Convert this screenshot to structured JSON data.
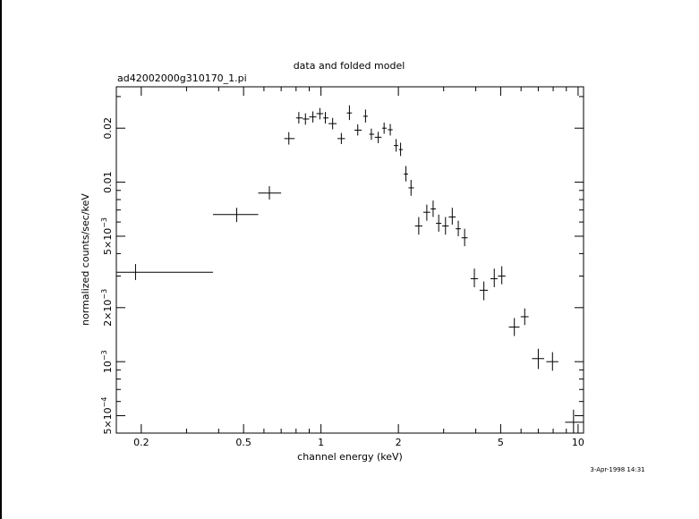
{
  "chart_data": {
    "type": "scatter",
    "title": "data and folded model",
    "subtitle": "ad42002000g310170_1.pi",
    "xlabel": "channel energy (keV)",
    "ylabel": "normalized counts/sec/keV",
    "timestamp": "3-Apr-1998 14:31",
    "x_scale": "log",
    "y_scale": "log",
    "xlim": [
      0.16,
      10.5
    ],
    "ylim": [
      0.0004,
      0.034
    ],
    "x_ticks": [
      {
        "value": 0.2,
        "label": "0.2"
      },
      {
        "value": 0.5,
        "label": "0.5"
      },
      {
        "value": 1,
        "label": "1"
      },
      {
        "value": 2,
        "label": "2"
      },
      {
        "value": 5,
        "label": "5"
      },
      {
        "value": 10,
        "label": "10"
      }
    ],
    "y_ticks": [
      {
        "value": 0.0005,
        "mantissa": "5×10",
        "exponent": "−4"
      },
      {
        "value": 0.001,
        "mantissa": "10",
        "exponent": "−3"
      },
      {
        "value": 0.002,
        "mantissa": "2×10",
        "exponent": "−3"
      },
      {
        "value": 0.005,
        "mantissa": "5×10",
        "exponent": "−3"
      },
      {
        "value": 0.01,
        "mantissa": "0.01",
        "exponent": ""
      },
      {
        "value": 0.02,
        "mantissa": "0.02",
        "exponent": ""
      }
    ],
    "grid": false,
    "points": [
      {
        "x": 0.19,
        "y": 0.00315,
        "xlo": 0.16,
        "xhi": 0.38,
        "ylo": 0.00285,
        "yhi": 0.0035
      },
      {
        "x": 0.47,
        "y": 0.0066,
        "xlo": 0.38,
        "xhi": 0.57,
        "ylo": 0.006,
        "yhi": 0.0072
      },
      {
        "x": 0.63,
        "y": 0.0087,
        "xlo": 0.57,
        "xhi": 0.7,
        "ylo": 0.008,
        "yhi": 0.0095
      },
      {
        "x": 0.75,
        "y": 0.0175,
        "xlo": 0.72,
        "xhi": 0.79,
        "ylo": 0.0162,
        "yhi": 0.019
      },
      {
        "x": 0.82,
        "y": 0.0228,
        "xlo": 0.8,
        "xhi": 0.85,
        "ylo": 0.0212,
        "yhi": 0.0246
      },
      {
        "x": 0.87,
        "y": 0.0225,
        "xlo": 0.85,
        "xhi": 0.9,
        "ylo": 0.0209,
        "yhi": 0.0242
      },
      {
        "x": 0.93,
        "y": 0.0231,
        "xlo": 0.9,
        "xhi": 0.96,
        "ylo": 0.0215,
        "yhi": 0.0248
      },
      {
        "x": 0.99,
        "y": 0.0241,
        "xlo": 0.96,
        "xhi": 1.02,
        "ylo": 0.0224,
        "yhi": 0.0259
      },
      {
        "x": 1.04,
        "y": 0.0228,
        "xlo": 1.02,
        "xhi": 1.07,
        "ylo": 0.0212,
        "yhi": 0.0246
      },
      {
        "x": 1.11,
        "y": 0.0212,
        "xlo": 1.07,
        "xhi": 1.15,
        "ylo": 0.0197,
        "yhi": 0.0228
      },
      {
        "x": 1.2,
        "y": 0.0175,
        "xlo": 1.16,
        "xhi": 1.24,
        "ylo": 0.0163,
        "yhi": 0.0188
      },
      {
        "x": 1.29,
        "y": 0.0243,
        "xlo": 1.26,
        "xhi": 1.32,
        "ylo": 0.0222,
        "yhi": 0.0268
      },
      {
        "x": 1.39,
        "y": 0.0195,
        "xlo": 1.35,
        "xhi": 1.44,
        "ylo": 0.0182,
        "yhi": 0.021
      },
      {
        "x": 1.49,
        "y": 0.0233,
        "xlo": 1.46,
        "xhi": 1.52,
        "ylo": 0.0215,
        "yhi": 0.0254
      },
      {
        "x": 1.57,
        "y": 0.0185,
        "xlo": 1.54,
        "xhi": 1.61,
        "ylo": 0.0172,
        "yhi": 0.0199
      },
      {
        "x": 1.67,
        "y": 0.0178,
        "xlo": 1.62,
        "xhi": 1.72,
        "ylo": 0.0165,
        "yhi": 0.0191
      },
      {
        "x": 1.76,
        "y": 0.02,
        "xlo": 1.73,
        "xhi": 1.8,
        "ylo": 0.0186,
        "yhi": 0.0215
      },
      {
        "x": 1.86,
        "y": 0.0196,
        "xlo": 1.82,
        "xhi": 1.9,
        "ylo": 0.0182,
        "yhi": 0.0211
      },
      {
        "x": 1.96,
        "y": 0.016,
        "xlo": 1.92,
        "xhi": 2.0,
        "ylo": 0.0148,
        "yhi": 0.0174
      },
      {
        "x": 2.04,
        "y": 0.0152,
        "xlo": 2.01,
        "xhi": 2.08,
        "ylo": 0.014,
        "yhi": 0.0166
      },
      {
        "x": 2.14,
        "y": 0.0111,
        "xlo": 2.1,
        "xhi": 2.18,
        "ylo": 0.0101,
        "yhi": 0.0123
      },
      {
        "x": 2.24,
        "y": 0.0093,
        "xlo": 2.19,
        "xhi": 2.3,
        "ylo": 0.0084,
        "yhi": 0.0103
      },
      {
        "x": 2.4,
        "y": 0.0057,
        "xlo": 2.32,
        "xhi": 2.48,
        "ylo": 0.0051,
        "yhi": 0.0064
      },
      {
        "x": 2.58,
        "y": 0.0068,
        "xlo": 2.5,
        "xhi": 2.66,
        "ylo": 0.0061,
        "yhi": 0.0075
      },
      {
        "x": 2.73,
        "y": 0.0071,
        "xlo": 2.67,
        "xhi": 2.8,
        "ylo": 0.0064,
        "yhi": 0.0079
      },
      {
        "x": 2.87,
        "y": 0.0059,
        "xlo": 2.8,
        "xhi": 2.94,
        "ylo": 0.0053,
        "yhi": 0.0066
      },
      {
        "x": 3.05,
        "y": 0.0057,
        "xlo": 2.96,
        "xhi": 3.14,
        "ylo": 0.0051,
        "yhi": 0.0064
      },
      {
        "x": 3.24,
        "y": 0.0064,
        "xlo": 3.14,
        "xhi": 3.34,
        "ylo": 0.0058,
        "yhi": 0.0072
      },
      {
        "x": 3.42,
        "y": 0.0055,
        "xlo": 3.34,
        "xhi": 3.5,
        "ylo": 0.005,
        "yhi": 0.0061
      },
      {
        "x": 3.62,
        "y": 0.0049,
        "xlo": 3.52,
        "xhi": 3.72,
        "ylo": 0.0044,
        "yhi": 0.0055
      },
      {
        "x": 3.95,
        "y": 0.0029,
        "xlo": 3.82,
        "xhi": 4.08,
        "ylo": 0.0026,
        "yhi": 0.0033
      },
      {
        "x": 4.3,
        "y": 0.0025,
        "xlo": 4.14,
        "xhi": 4.46,
        "ylo": 0.0022,
        "yhi": 0.0028
      },
      {
        "x": 4.72,
        "y": 0.0029,
        "xlo": 4.56,
        "xhi": 4.86,
        "ylo": 0.0026,
        "yhi": 0.0033
      },
      {
        "x": 5.05,
        "y": 0.003,
        "xlo": 4.88,
        "xhi": 5.22,
        "ylo": 0.0027,
        "yhi": 0.0034
      },
      {
        "x": 5.65,
        "y": 0.00156,
        "xlo": 5.38,
        "xhi": 5.92,
        "ylo": 0.00139,
        "yhi": 0.00175
      },
      {
        "x": 6.2,
        "y": 0.00178,
        "xlo": 5.98,
        "xhi": 6.42,
        "ylo": 0.0016,
        "yhi": 0.00198
      },
      {
        "x": 7.0,
        "y": 0.00104,
        "xlo": 6.62,
        "xhi": 7.38,
        "ylo": 0.00091,
        "yhi": 0.00118
      },
      {
        "x": 7.95,
        "y": 0.001,
        "xlo": 7.52,
        "xhi": 8.38,
        "ylo": 0.00089,
        "yhi": 0.00113
      },
      {
        "x": 9.6,
        "y": 0.00046,
        "xlo": 8.9,
        "xhi": 10.5,
        "ylo": 0.0004,
        "yhi": 0.00054
      }
    ]
  }
}
